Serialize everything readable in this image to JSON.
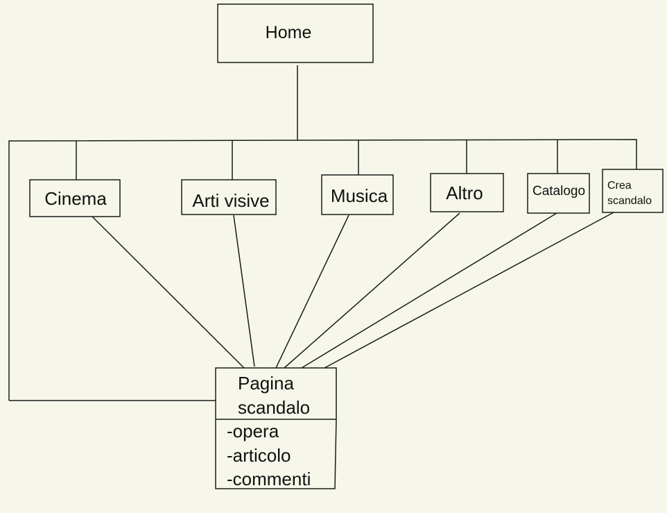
{
  "diagram": {
    "home": "Home",
    "sections": {
      "cinema": "Cinema",
      "arti_visive": "Arti visive",
      "musica": "Musica",
      "altro": "Altro",
      "catalogo": "Catalogo",
      "crea_line1": "Crea",
      "crea_line2": "scandalo"
    },
    "pagina": {
      "title_line1": "Pagina",
      "title_line2": "scandalo",
      "items": [
        "-opera",
        "-articolo",
        "-commenti"
      ]
    }
  },
  "colors": {
    "background": "#f6f6ea",
    "stroke": "#1a1a1a"
  }
}
